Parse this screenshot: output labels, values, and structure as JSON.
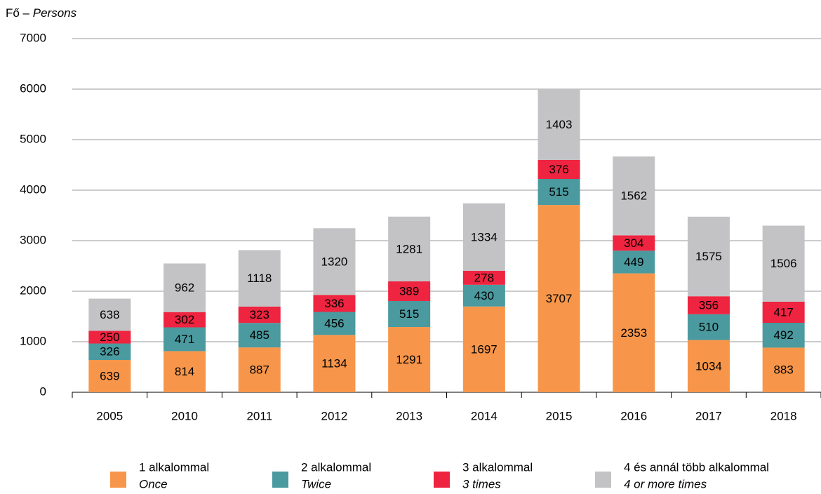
{
  "chart_data": {
    "type": "stacked_bar",
    "ylabel": [
      "Fő –",
      "Persons"
    ],
    "categories": [
      "2005",
      "2010",
      "2011",
      "2012",
      "2013",
      "2014",
      "2015",
      "2016",
      "2017",
      "2018"
    ],
    "series": [
      {
        "name": "1 alkalommal",
        "name_en": "Once",
        "color": "#f7964a",
        "values": [
          639,
          814,
          887,
          1134,
          1291,
          1697,
          3707,
          2353,
          1034,
          883
        ]
      },
      {
        "name": "2 alkalommal",
        "name_en": "Twice",
        "color": "#4a9a9f",
        "values": [
          326,
          471,
          485,
          456,
          515,
          430,
          515,
          449,
          510,
          492
        ]
      },
      {
        "name": "3 alkalommal",
        "name_en": "3 times",
        "color": "#ee2440",
        "values": [
          250,
          302,
          323,
          336,
          389,
          278,
          376,
          304,
          356,
          417
        ]
      },
      {
        "name": "4 és annál több alkalommal",
        "name_en": "4 or more times",
        "color": "#c3c3c5",
        "values": [
          638,
          962,
          1118,
          1320,
          1281,
          1334,
          1403,
          1562,
          1575,
          1506
        ]
      }
    ],
    "ylim": [
      0,
      7000
    ],
    "yticks": [
      0,
      1000,
      2000,
      3000,
      4000,
      5000,
      6000,
      7000
    ],
    "grid": true,
    "legend": "bottom"
  }
}
